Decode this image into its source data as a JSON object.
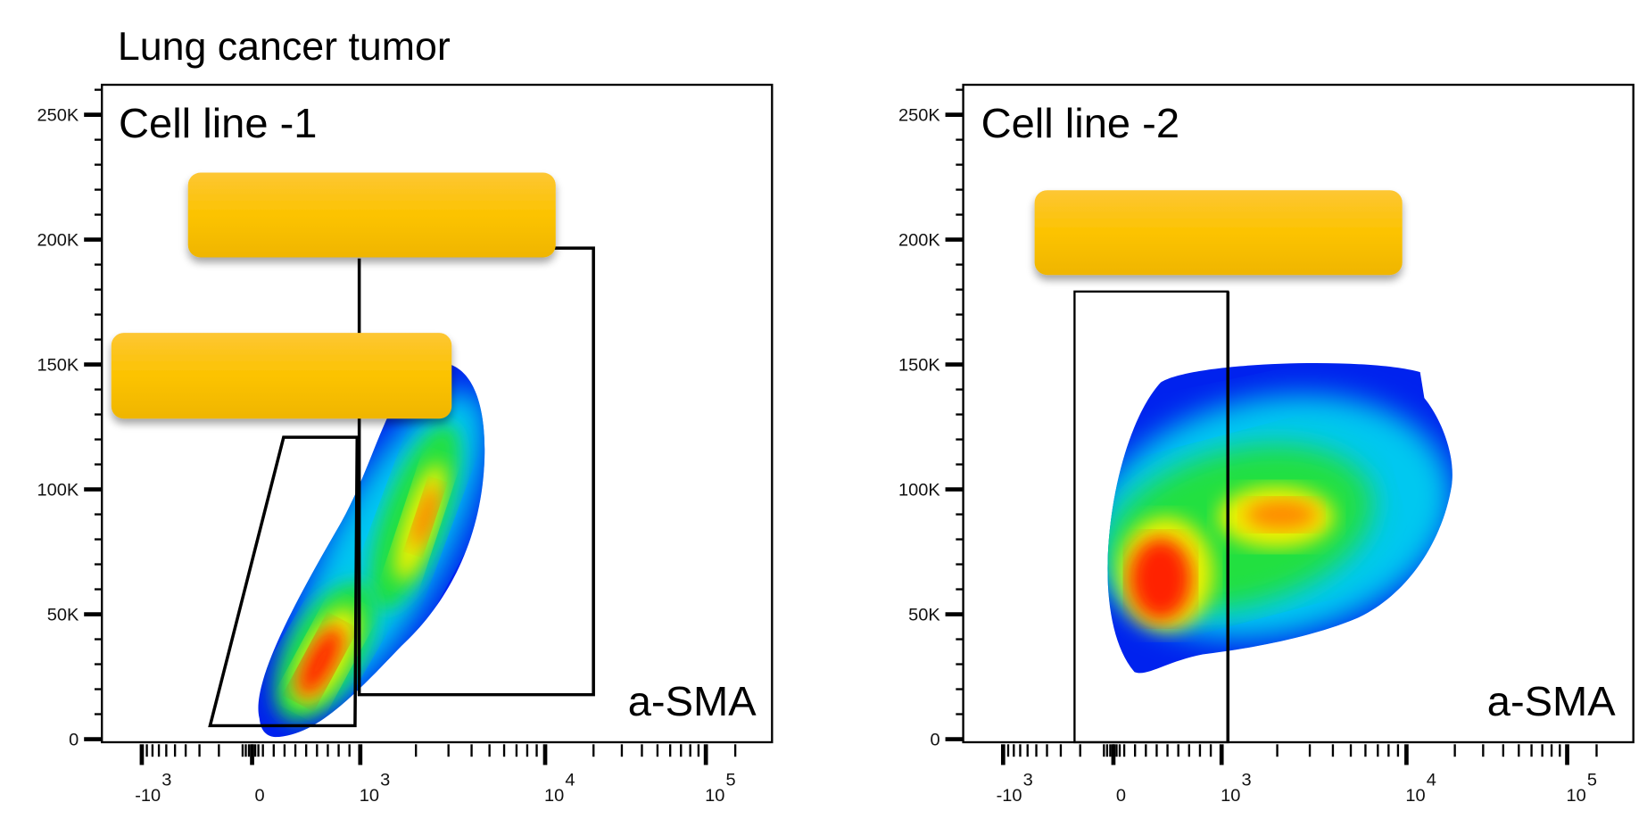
{
  "title": "Lung cancer tumor",
  "colors": {
    "redaction_top": "#fdc634",
    "redaction_bottom": "#efb500",
    "density": [
      "#0022ee",
      "#00c8f0",
      "#22e040",
      "#f0f000",
      "#ff2000"
    ]
  },
  "chart_data": {
    "type": "heatmap",
    "subtype": "flow-cytometry-density-plot",
    "panels": [
      {
        "label": "Cell line -1",
        "xlabel": "a-SMA",
        "y_ticks": [
          "250K",
          "200K",
          "150K",
          "100K",
          "50K",
          "0"
        ],
        "y_tick_values": [
          250000,
          200000,
          150000,
          100000,
          50000,
          0
        ],
        "ylim": [
          0,
          262144
        ],
        "x_scale": "biexponential",
        "x_ticks": [
          {
            "base": "-10",
            "exp": "3"
          },
          {
            "base": "0",
            "exp": ""
          },
          {
            "base": "10",
            "exp": "3"
          },
          {
            "base": "10",
            "exp": "4"
          },
          {
            "base": "10",
            "exp": "5"
          }
        ],
        "x_tick_values": [
          -1000,
          0,
          1000,
          10000,
          100000
        ],
        "gates": [
          {
            "shape": "polygon",
            "x": [
              -700,
              -150,
              800,
              800
            ],
            "y": [
              5000,
              120000,
              120000,
              5000
            ]
          },
          {
            "shape": "rectangle",
            "x": [
              900,
              18000
            ],
            "y": [
              18000,
              196000
            ]
          }
        ],
        "density_peaks": [
          {
            "x": 400,
            "y": 30000
          },
          {
            "x": 2000,
            "y": 90000
          }
        ]
      },
      {
        "label": "Cell line -2",
        "xlabel": "a-SMA",
        "y_ticks": [
          "250K",
          "200K",
          "150K",
          "100K",
          "50K",
          "0"
        ],
        "y_tick_values": [
          250000,
          200000,
          150000,
          100000,
          50000,
          0
        ],
        "ylim": [
          0,
          262144
        ],
        "x_scale": "biexponential",
        "x_ticks": [
          {
            "base": "-10",
            "exp": "3"
          },
          {
            "base": "0",
            "exp": ""
          },
          {
            "base": "10",
            "exp": "3"
          },
          {
            "base": "10",
            "exp": "4"
          },
          {
            "base": "10",
            "exp": "5"
          }
        ],
        "x_tick_values": [
          -1000,
          0,
          1000,
          10000,
          100000
        ],
        "gates": [
          {
            "shape": "rectangle",
            "x": [
              -500,
              1000
            ],
            "y": [
              0,
              180000
            ]
          }
        ],
        "density_peaks": [
          {
            "x": 150,
            "y": 65000
          },
          {
            "x": 2500,
            "y": 88000
          }
        ]
      }
    ]
  }
}
